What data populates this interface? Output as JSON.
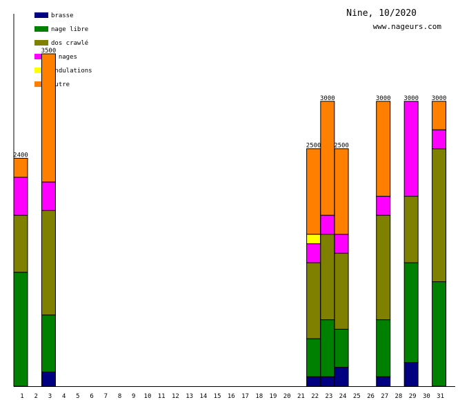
{
  "header": {
    "title": "Nine, 10/2020",
    "site": "www.nageurs.com"
  },
  "chart_data": {
    "type": "bar",
    "stacked": true,
    "title": "Nine, 10/2020",
    "xlabel": "",
    "ylabel": "",
    "ylim": [
      0,
      3500
    ],
    "categories": [
      "1",
      "2",
      "3",
      "4",
      "5",
      "6",
      "7",
      "8",
      "9",
      "10",
      "11",
      "12",
      "13",
      "14",
      "15",
      "16",
      "17",
      "18",
      "19",
      "20",
      "21",
      "22",
      "23",
      "24",
      "25",
      "26",
      "27",
      "28",
      "29",
      "30",
      "31"
    ],
    "legend_position": "top-left",
    "series": [
      {
        "name": "brasse",
        "color": "#000080",
        "values": [
          0,
          0,
          150,
          0,
          0,
          0,
          0,
          0,
          0,
          0,
          0,
          0,
          0,
          0,
          0,
          0,
          0,
          0,
          0,
          0,
          0,
          100,
          100,
          200,
          0,
          0,
          100,
          0,
          250,
          0,
          0
        ]
      },
      {
        "name": "nage libre",
        "color": "#008000",
        "values": [
          1200,
          0,
          600,
          0,
          0,
          0,
          0,
          0,
          0,
          0,
          0,
          0,
          0,
          0,
          0,
          0,
          0,
          0,
          0,
          0,
          0,
          400,
          600,
          400,
          0,
          0,
          600,
          0,
          1050,
          0,
          1100
        ]
      },
      {
        "name": "dos crawlé",
        "color": "#808000",
        "values": [
          600,
          0,
          1100,
          0,
          0,
          0,
          0,
          0,
          0,
          0,
          0,
          0,
          0,
          0,
          0,
          0,
          0,
          0,
          0,
          0,
          0,
          800,
          900,
          800,
          0,
          0,
          1100,
          0,
          700,
          0,
          1400
        ]
      },
      {
        "name": "4 nages",
        "color": "#ff00ff",
        "values": [
          400,
          0,
          300,
          0,
          0,
          0,
          0,
          0,
          0,
          0,
          0,
          0,
          0,
          0,
          0,
          0,
          0,
          0,
          0,
          0,
          0,
          200,
          200,
          200,
          0,
          0,
          200,
          0,
          1000,
          0,
          200
        ]
      },
      {
        "name": "ondulations",
        "color": "#ffff00",
        "values": [
          0,
          0,
          0,
          0,
          0,
          0,
          0,
          0,
          0,
          0,
          0,
          0,
          0,
          0,
          0,
          0,
          0,
          0,
          0,
          0,
          0,
          100,
          0,
          0,
          0,
          0,
          0,
          0,
          0,
          0,
          0
        ]
      },
      {
        "name": "autre",
        "color": "#ff8000",
        "values": [
          200,
          0,
          1350,
          0,
          0,
          0,
          0,
          0,
          0,
          0,
          0,
          0,
          0,
          0,
          0,
          0,
          0,
          0,
          0,
          0,
          0,
          900,
          1200,
          900,
          0,
          0,
          1000,
          0,
          0,
          0,
          300
        ]
      }
    ],
    "totals": [
      "2400",
      "",
      "3500",
      "",
      "",
      "",
      "",
      "",
      "",
      "",
      "",
      "",
      "",
      "",
      "",
      "",
      "",
      "",
      "",
      "",
      "",
      "2500",
      "3000",
      "2500",
      "",
      "",
      "3000",
      "",
      "3000",
      "",
      "3000"
    ],
    "grid": false
  }
}
